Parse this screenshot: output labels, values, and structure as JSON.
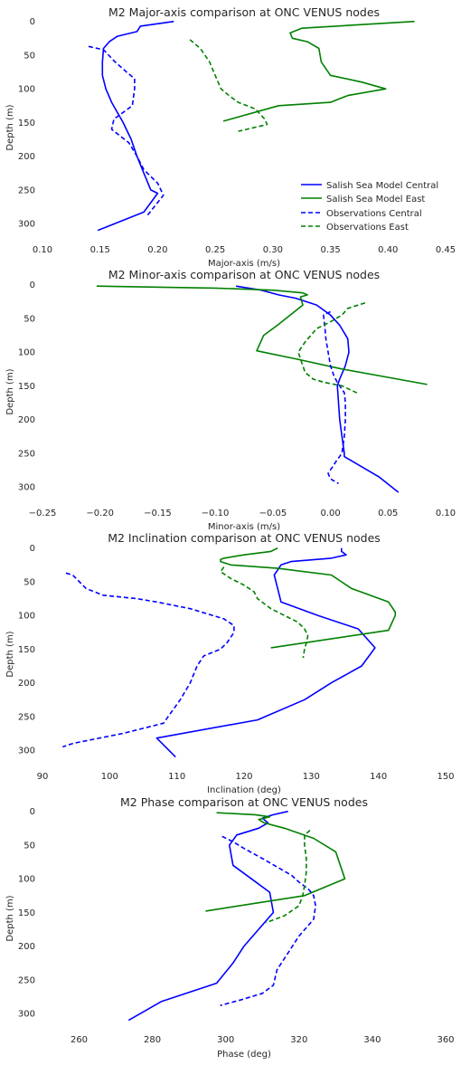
{
  "chart_data": [
    {
      "type": "line",
      "title": "M2 Major-axis comparison at ONC VENUS nodes",
      "xlabel": "Major-axis (m/s)",
      "ylabel": "Depth (m)",
      "xlim": [
        0.1,
        0.45
      ],
      "ylim": [
        320,
        -5
      ],
      "xticks": [
        "0.10",
        "0.15",
        "0.20",
        "0.25",
        "0.30",
        "0.35",
        "0.40",
        "0.45"
      ],
      "xtick_values": [
        0.1,
        0.15,
        0.2,
        0.25,
        0.3,
        0.35,
        0.4,
        0.45
      ],
      "yticks": [
        "0",
        "50",
        "100",
        "150",
        "200",
        "250",
        "300"
      ],
      "ytick_values": [
        0,
        50,
        100,
        150,
        200,
        250,
        300
      ],
      "legend": "lower-right",
      "series": [
        {
          "name": "Salish Sea Model Central",
          "color": "#0000ff",
          "dash": false,
          "x": [
            0.214,
            0.185,
            0.182,
            0.165,
            0.158,
            0.153,
            0.152,
            0.152,
            0.155,
            0.16,
            0.17,
            0.177,
            0.182,
            0.188,
            0.194,
            0.2,
            0.188,
            0.148
          ],
          "y": [
            0,
            7,
            15,
            22,
            30,
            40,
            60,
            80,
            100,
            120,
            150,
            175,
            200,
            225,
            250,
            255,
            283,
            310
          ]
        },
        {
          "name": "Salish Sea Model East",
          "color": "#008000",
          "dash": false,
          "x": [
            0.423,
            0.325,
            0.315,
            0.317,
            0.33,
            0.34,
            0.342,
            0.35,
            0.377,
            0.398,
            0.365,
            0.35,
            0.305,
            0.257
          ],
          "y": [
            0,
            10,
            17,
            25,
            30,
            40,
            60,
            80,
            90,
            100,
            110,
            120,
            125,
            148
          ]
        },
        {
          "name": "Observations Central",
          "color": "#0000ff",
          "dash": true,
          "x": [
            0.14,
            0.153,
            0.163,
            0.173,
            0.18,
            0.18,
            0.178,
            0.162,
            0.16,
            0.175,
            0.182,
            0.188,
            0.2,
            0.205,
            0.19
          ],
          "y": [
            37,
            42,
            60,
            75,
            85,
            100,
            125,
            145,
            160,
            180,
            200,
            220,
            240,
            258,
            290
          ]
        },
        {
          "name": "Observations East",
          "color": "#008000",
          "dash": true,
          "x": [
            0.228,
            0.237,
            0.245,
            0.25,
            0.255,
            0.262,
            0.27,
            0.285,
            0.293,
            0.295,
            0.27
          ],
          "y": [
            27,
            40,
            60,
            80,
            100,
            110,
            120,
            130,
            145,
            153,
            163
          ]
        }
      ]
    },
    {
      "type": "line",
      "title": "M2 Minor-axis comparison at ONC VENUS nodes",
      "xlabel": "Minor-axis (m/s)",
      "ylabel": "Depth (m)",
      "xlim": [
        -0.25,
        0.1
      ],
      "ylim": [
        320,
        -5
      ],
      "xticks": [
        "−0.25",
        "−0.20",
        "−0.15",
        "−0.10",
        "−0.05",
        "0.00",
        "0.05",
        "0.10"
      ],
      "xtick_values": [
        -0.25,
        -0.2,
        -0.15,
        -0.1,
        -0.05,
        0.0,
        0.05,
        0.1
      ],
      "yticks": [
        "0",
        "50",
        "100",
        "150",
        "200",
        "250",
        "300"
      ],
      "ytick_values": [
        0,
        50,
        100,
        150,
        200,
        250,
        300
      ],
      "series": [
        {
          "name": "Salish Sea Model Central",
          "color": "#0000ff",
          "dash": false,
          "x": [
            -0.082,
            -0.06,
            -0.045,
            -0.03,
            -0.012,
            0.0,
            0.008,
            0.015,
            0.016,
            0.013,
            0.008,
            0.006,
            0.007,
            0.008,
            0.01,
            0.012,
            0.012,
            0.042,
            0.059
          ],
          "y": [
            2,
            8,
            15,
            20,
            30,
            45,
            60,
            80,
            100,
            120,
            140,
            150,
            175,
            200,
            225,
            250,
            255,
            285,
            308
          ]
        },
        {
          "name": "Salish Sea Model East",
          "color": "#008000",
          "dash": false,
          "x": [
            -0.203,
            -0.1,
            -0.05,
            -0.024,
            -0.02,
            -0.026,
            -0.024,
            -0.046,
            -0.058,
            -0.064,
            -0.03,
            0.01,
            0.084
          ],
          "y": [
            2,
            5,
            8,
            12,
            15,
            18,
            30,
            60,
            75,
            98,
            110,
            125,
            148
          ]
        },
        {
          "name": "Observations Central",
          "color": "#0000ff",
          "dash": true,
          "x": [
            0.0,
            -0.006,
            -0.005,
            -0.004,
            -0.002,
            0.0,
            0.003,
            0.006,
            0.01,
            0.012,
            0.013,
            0.013,
            0.012,
            0.01,
            0.005,
            -0.002,
            0.0,
            0.007
          ],
          "y": [
            40,
            45,
            60,
            80,
            100,
            120,
            135,
            145,
            155,
            160,
            175,
            200,
            225,
            250,
            262,
            280,
            288,
            295
          ]
        },
        {
          "name": "Observations East",
          "color": "#008000",
          "dash": true,
          "x": [
            0.03,
            0.015,
            0.01,
            0.0,
            -0.012,
            -0.017,
            -0.022,
            -0.028,
            -0.022,
            -0.015,
            -0.005,
            0.01,
            0.025
          ],
          "y": [
            27,
            35,
            45,
            55,
            65,
            75,
            85,
            100,
            130,
            140,
            145,
            150,
            162
          ]
        }
      ]
    },
    {
      "type": "line",
      "title": "M2 Inclination comparison at ONC VENUS nodes",
      "xlabel": "Inclination (deg)",
      "ylabel": "Depth (m)",
      "xlim": [
        90,
        150
      ],
      "ylim": [
        320,
        -5
      ],
      "xticks": [
        "90",
        "100",
        "110",
        "120",
        "130",
        "140",
        "150"
      ],
      "xtick_values": [
        90,
        100,
        110,
        120,
        130,
        140,
        150
      ],
      "yticks": [
        "0",
        "50",
        "100",
        "150",
        "200",
        "250",
        "300"
      ],
      "ytick_values": [
        0,
        50,
        100,
        150,
        200,
        250,
        300
      ],
      "series": [
        {
          "name": "Salish Sea Model Central",
          "color": "#0000ff",
          "dash": false,
          "x": [
            134.5,
            134.5,
            135.2,
            133.0,
            127.0,
            125.5,
            124.5,
            125.0,
            125.5,
            131.0,
            137.0,
            139.5,
            137.5,
            133.0,
            129.0,
            122.0,
            107.0,
            109.8
          ],
          "y": [
            0,
            5,
            10,
            15,
            20,
            25,
            40,
            60,
            80,
            100,
            120,
            148,
            175,
            200,
            225,
            255,
            282,
            310
          ]
        },
        {
          "name": "Salish Sea Model East",
          "color": "#008000",
          "dash": false,
          "x": [
            125.0,
            124.0,
            120.0,
            117.0,
            116.5,
            116.5,
            118.0,
            125.0,
            133.0,
            136.0,
            141.5,
            142.5,
            142.5,
            141.5,
            124.0
          ],
          "y": [
            0,
            5,
            10,
            15,
            17,
            20,
            25,
            30,
            40,
            60,
            80,
            95,
            100,
            122,
            148
          ]
        },
        {
          "name": "Observations Central",
          "color": "#0000ff",
          "dash": true,
          "x": [
            93.5,
            94.5,
            95.5,
            96.5,
            99.0,
            104.0,
            107.0,
            112.0,
            117.0,
            118.5,
            118.5,
            117.5,
            116.5,
            114.0,
            113.0,
            112.0,
            110.5,
            108.0,
            102.0,
            97.0,
            94.5,
            93.0
          ],
          "y": [
            37,
            40,
            50,
            60,
            70,
            75,
            80,
            90,
            105,
            115,
            125,
            140,
            150,
            160,
            175,
            200,
            225,
            260,
            275,
            285,
            290,
            295
          ]
        },
        {
          "name": "Observations East",
          "color": "#008000",
          "dash": true,
          "x": [
            117.0,
            116.5,
            118.0,
            120.0,
            121.5,
            122.0,
            124.0,
            126.0,
            128.0,
            129.0,
            129.5,
            129.3,
            129.0,
            128.8
          ],
          "y": [
            28,
            35,
            45,
            55,
            65,
            75,
            90,
            100,
            110,
            120,
            130,
            140,
            150,
            163
          ]
        }
      ]
    },
    {
      "type": "line",
      "title": "M2 Phase comparison at ONC VENUS nodes",
      "xlabel": "Phase (deg)",
      "ylabel": "Depth (m)",
      "xlim": [
        250,
        360
      ],
      "ylim": [
        320,
        -5
      ],
      "xticks": [
        "260",
        "280",
        "300",
        "320",
        "340",
        "360"
      ],
      "xtick_values": [
        260,
        280,
        300,
        320,
        340,
        360
      ],
      "yticks": [
        "0",
        "50",
        "100",
        "150",
        "200",
        "250",
        "300"
      ],
      "ytick_values": [
        0,
        50,
        100,
        150,
        200,
        250,
        300
      ],
      "series": [
        {
          "name": "Salish Sea Model Central",
          "color": "#0000ff",
          "dash": false,
          "x": [
            317.0,
            313.0,
            310.0,
            311.5,
            309.0,
            303.0,
            301.0,
            302.0,
            307.0,
            312.0,
            313.0,
            309.0,
            305.0,
            302.0,
            297.5,
            282.5,
            273.5
          ],
          "y": [
            0,
            5,
            10,
            17,
            25,
            35,
            50,
            80,
            100,
            120,
            150,
            175,
            200,
            225,
            255,
            282,
            310
          ]
        },
        {
          "name": "Salish Sea Model East",
          "color": "#008000",
          "dash": false,
          "x": [
            297.5,
            308.0,
            312.0,
            309.0,
            310.5,
            316.0,
            324.0,
            330.0,
            332.5,
            321.5,
            294.5
          ],
          "y": [
            2,
            5,
            8,
            12,
            17,
            25,
            40,
            60,
            100,
            125,
            148
          ]
        },
        {
          "name": "Observations Central",
          "color": "#0000ff",
          "dash": true,
          "x": [
            299.0,
            302.0,
            305.0,
            310.0,
            318.0,
            320.0,
            322.5,
            324.0,
            324.5,
            324.0,
            320.0,
            317.0,
            314.0,
            313.0,
            310.0,
            304.0,
            298.5
          ],
          "y": [
            37,
            45,
            55,
            70,
            95,
            105,
            115,
            125,
            140,
            160,
            185,
            210,
            235,
            258,
            270,
            280,
            288
          ]
        },
        {
          "name": "Observations East",
          "color": "#008000",
          "dash": true,
          "x": [
            323.0,
            321.5,
            321.5,
            322.0,
            322.0,
            321.5,
            321.0,
            320.0,
            316.0,
            311.0
          ],
          "y": [
            28,
            35,
            50,
            70,
            90,
            110,
            125,
            140,
            155,
            165
          ]
        }
      ]
    }
  ]
}
